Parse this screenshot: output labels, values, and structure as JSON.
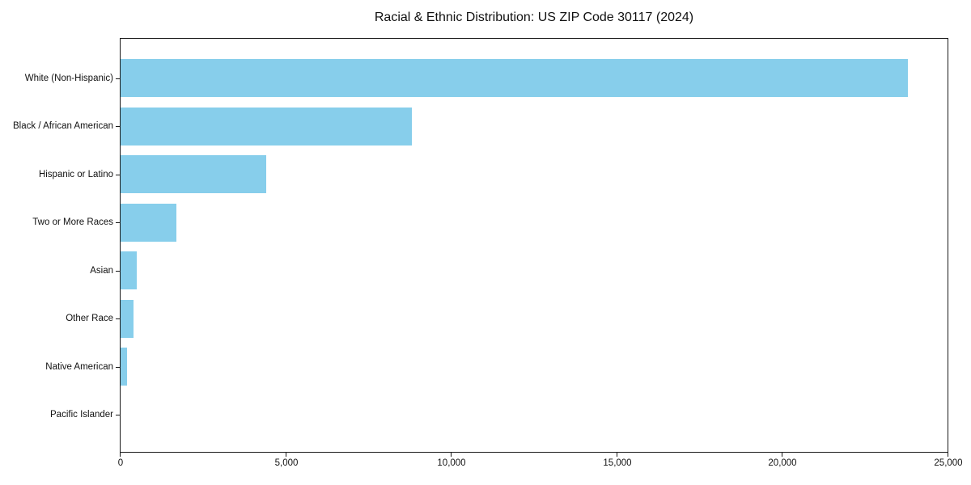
{
  "title": "Racial & Ethnic Distribution: US ZIP Code 30117 (2024)",
  "colors": {
    "bar_fill": "#87CEEB",
    "axis": "#1a1a1a",
    "background": "#ffffff",
    "text": "#111111"
  },
  "chart_data": {
    "type": "bar",
    "orientation": "horizontal",
    "title": "Racial & Ethnic Distribution: US ZIP Code 30117 (2024)",
    "xlabel": "",
    "ylabel": "",
    "grid": false,
    "legend": null,
    "categories": [
      "White (Non-Hispanic)",
      "Black / African American",
      "Hispanic or Latino",
      "Two or More Races",
      "Asian",
      "Other Race",
      "Native American",
      "Pacific Islander"
    ],
    "values": [
      23800,
      8800,
      4400,
      1700,
      500,
      380,
      190,
      10
    ],
    "xlim": [
      0,
      25000
    ],
    "x_tick_values": [
      0,
      5000,
      10000,
      15000,
      20000,
      25000
    ],
    "x_tick_labels": [
      "0",
      "5,000",
      "10,000",
      "15,000",
      "20,000",
      "25,000"
    ]
  }
}
